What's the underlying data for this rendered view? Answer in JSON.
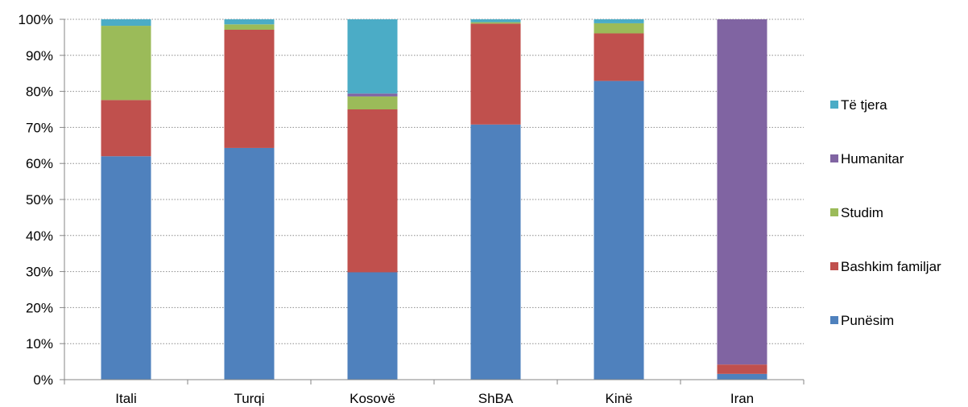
{
  "chart_data": {
    "type": "bar",
    "stacked": true,
    "percent": true,
    "categories": [
      "Itali",
      "Turqi",
      "Kosovë",
      "ShBA",
      "Kinë",
      "Iran"
    ],
    "series": [
      {
        "name": "Punësim",
        "color": "#4F81BD",
        "values": [
          62,
          64.3,
          29.8,
          70.8,
          82.9,
          1.6
        ]
      },
      {
        "name": "Bashkim familjar",
        "color": "#C0504D",
        "values": [
          15.6,
          32.8,
          45.2,
          28,
          13.2,
          2.6
        ]
      },
      {
        "name": "Studim",
        "color": "#9BBB59",
        "values": [
          20.6,
          1.5,
          3.6,
          0.4,
          2.8,
          0
        ]
      },
      {
        "name": "Humanitar",
        "color": "#8064A2",
        "values": [
          0,
          0,
          0.8,
          0,
          0,
          95.8
        ]
      },
      {
        "name": "Të tjera",
        "color": "#4BACC6",
        "values": [
          1.8,
          1.4,
          20.6,
          0.8,
          1.1,
          0
        ]
      }
    ],
    "ylim": [
      0,
      100
    ],
    "yticks": [
      "0%",
      "10%",
      "20%",
      "30%",
      "40%",
      "50%",
      "60%",
      "70%",
      "80%",
      "90%",
      "100%"
    ],
    "grid": true,
    "legend_position": "right",
    "legend_order": [
      "Të tjera",
      "Humanitar",
      "Studim",
      "Bashkim familjar",
      "Punësim"
    ],
    "title": "",
    "xlabel": "",
    "ylabel": ""
  }
}
